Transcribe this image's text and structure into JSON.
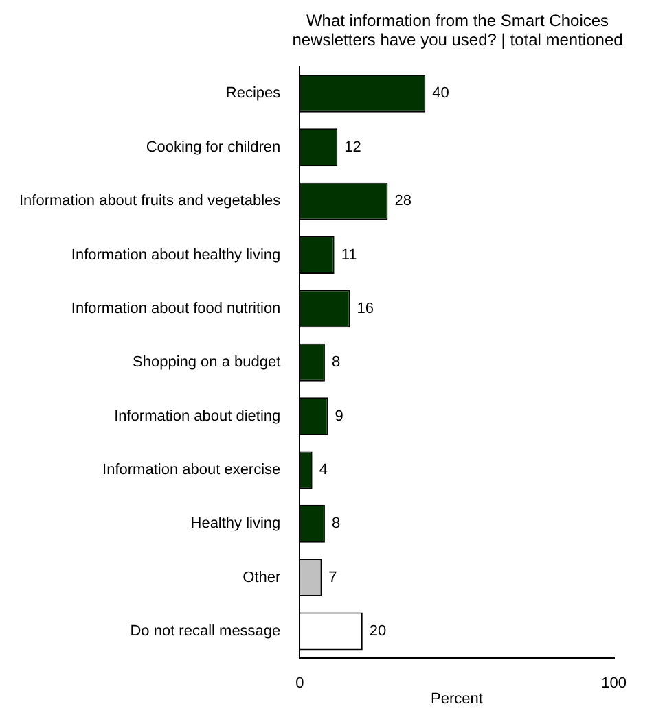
{
  "chart_data": {
    "type": "bar",
    "orientation": "horizontal",
    "title": "What information from the  Smart Choices newsletters have you used? | total mentioned",
    "xlabel": "Percent",
    "categories": [
      "Recipes",
      "Cooking for children",
      "Information about fruits and vegetables",
      "Information about healthy living",
      "Information about food nutrition",
      "Shopping on a budget",
      "Information about dieting",
      "Information about exercise",
      "Healthy living",
      "Other",
      "Do not recall message"
    ],
    "values": [
      40,
      12,
      28,
      11,
      16,
      8,
      9,
      4,
      8,
      7,
      20
    ],
    "colors": [
      "#003300",
      "#003300",
      "#003300",
      "#003300",
      "#003300",
      "#003300",
      "#003300",
      "#003300",
      "#003300",
      "#c0c0c0",
      "#ffffff"
    ],
    "xlim": [
      0,
      100
    ],
    "xticks": [
      0,
      100
    ],
    "data_labels": true,
    "grid": false,
    "legend": false
  }
}
